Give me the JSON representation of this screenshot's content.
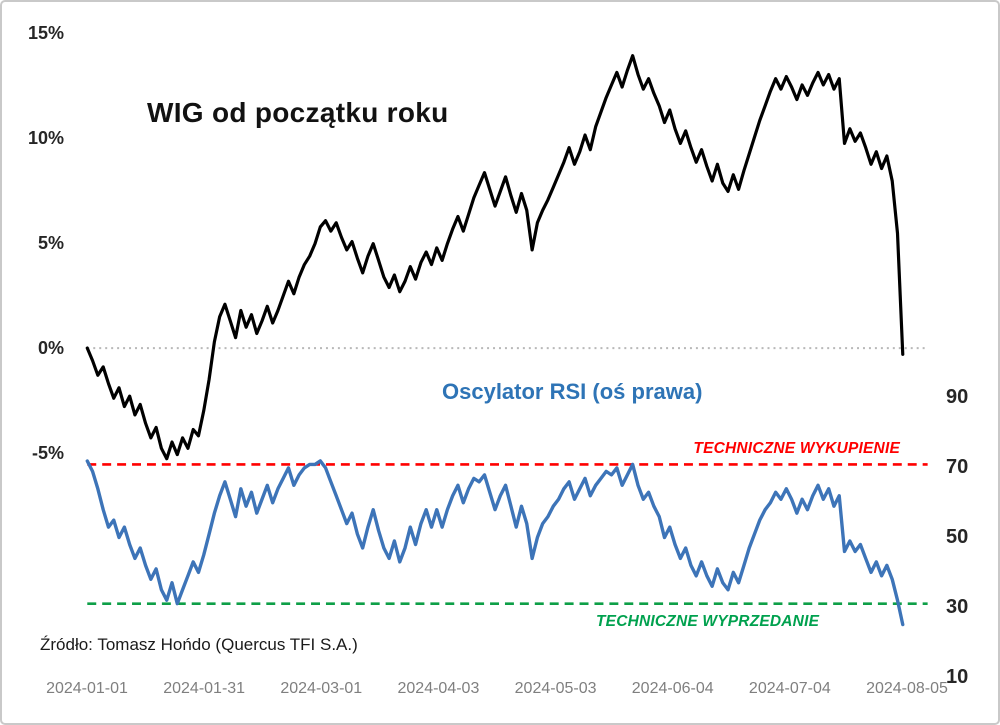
{
  "colors": {
    "background": "#FFFFFF",
    "wig_line": "#000000",
    "rsi_line": "#3D74B8",
    "overbought": "#FF0000",
    "oversold": "#00A14E",
    "oversold_line": "#0E9F47",
    "zero_line": "#B8B8B8",
    "axis_text": "#262626",
    "x_tick_text": "#7F7F7F"
  },
  "chart_data": {
    "type": "line",
    "title": "WIG od początku roku",
    "source": "Źródło: Tomasz Hońdo (Quercus TFI S.A.)",
    "x_tick_labels": [
      "2024-01-01",
      "2024-01-31",
      "2024-03-01",
      "2024-04-03",
      "2024-05-03",
      "2024-06-04",
      "2024-07-04",
      "2024-08-05"
    ],
    "left_axis": {
      "tick_labels": [
        "15%",
        "10%",
        "5%",
        "0%",
        "-5%"
      ],
      "tick_values": [
        15,
        10,
        5,
        0,
        -5
      ],
      "range": [
        -6,
        15.5
      ],
      "grid": "dotted line at 0% only"
    },
    "right_axis": {
      "tick_labels": [
        "90",
        "70",
        "50",
        "30",
        "10"
      ],
      "tick_values": [
        90,
        70,
        50,
        30,
        10
      ],
      "range": [
        10,
        95
      ]
    },
    "annotations": [
      {
        "text": "Oscylator RSI (oś prawa)",
        "color": "#2E74B6"
      },
      {
        "text": "TECHNICZNE WYKUPIENIE",
        "color": "#FF0000"
      },
      {
        "text": "TECHNICZNE WYPRZEDANIE",
        "color": "#00A14E"
      }
    ],
    "reference_lines": [
      {
        "id": "zero-gridline",
        "axis": "left",
        "value": 0,
        "style": "dotted",
        "color": "#B8B8B8"
      },
      {
        "id": "overbought-line",
        "axis": "right",
        "value": 70,
        "style": "dashed",
        "color": "#FF0000"
      },
      {
        "id": "oversold-line",
        "axis": "right",
        "value": 30,
        "style": "dashed",
        "color": "#0E9F47"
      }
    ],
    "series": [
      {
        "id": "wig-line",
        "name": "WIG od początku roku (%)",
        "axis": "left",
        "color": "#000000",
        "values": [
          0.0,
          -0.6,
          -1.3,
          -0.9,
          -1.7,
          -2.4,
          -1.9,
          -2.8,
          -2.3,
          -3.2,
          -2.7,
          -3.6,
          -4.3,
          -3.8,
          -4.8,
          -5.3,
          -4.5,
          -5.1,
          -4.3,
          -4.8,
          -3.9,
          -4.2,
          -3.0,
          -1.5,
          0.3,
          1.5,
          2.1,
          1.3,
          0.5,
          1.8,
          1.0,
          1.6,
          0.7,
          1.3,
          2.0,
          1.2,
          1.8,
          2.5,
          3.2,
          2.6,
          3.4,
          4.0,
          4.4,
          5.0,
          5.8,
          6.1,
          5.6,
          6.0,
          5.3,
          4.7,
          5.1,
          4.3,
          3.6,
          4.4,
          5.0,
          4.2,
          3.4,
          2.9,
          3.5,
          2.7,
          3.2,
          3.9,
          3.3,
          4.1,
          4.6,
          4.0,
          4.8,
          4.2,
          5.0,
          5.7,
          6.3,
          5.6,
          6.4,
          7.2,
          7.8,
          8.4,
          7.6,
          6.8,
          7.5,
          8.2,
          7.3,
          6.5,
          7.4,
          6.6,
          4.7,
          6.0,
          6.6,
          7.1,
          7.7,
          8.3,
          8.9,
          9.6,
          8.8,
          9.4,
          10.2,
          9.5,
          10.6,
          11.3,
          12.0,
          12.6,
          13.2,
          12.5,
          13.3,
          14.0,
          13.1,
          12.4,
          12.9,
          12.2,
          11.6,
          10.8,
          11.4,
          10.5,
          9.8,
          10.4,
          9.6,
          8.9,
          9.5,
          8.7,
          8.0,
          8.8,
          7.9,
          7.5,
          8.3,
          7.6,
          8.5,
          9.3,
          10.1,
          10.9,
          11.6,
          12.3,
          12.9,
          12.4,
          13.0,
          12.5,
          11.9,
          12.6,
          12.1,
          12.7,
          13.2,
          12.6,
          13.1,
          12.4,
          12.9,
          9.8,
          10.5,
          9.9,
          10.3,
          9.6,
          8.8,
          9.4,
          8.6,
          9.2,
          8.0,
          5.5,
          -0.3
        ]
      },
      {
        "id": "rsi-line",
        "name": "Oscylator RSI",
        "axis": "right",
        "color": "#3D74B8",
        "values": [
          71,
          68,
          63,
          57,
          52,
          54,
          49,
          52,
          47,
          43,
          46,
          41,
          37,
          40,
          34,
          31,
          36,
          30,
          34,
          38,
          42,
          39,
          44,
          50,
          56,
          61,
          65,
          60,
          55,
          63,
          58,
          62,
          56,
          60,
          64,
          59,
          63,
          66,
          69,
          64,
          67,
          69,
          70,
          70,
          71,
          69,
          65,
          61,
          57,
          53,
          56,
          50,
          46,
          52,
          57,
          51,
          46,
          43,
          48,
          42,
          46,
          52,
          47,
          53,
          57,
          52,
          57,
          52,
          57,
          61,
          64,
          59,
          63,
          66,
          65,
          67,
          62,
          57,
          61,
          64,
          58,
          52,
          58,
          53,
          43,
          49,
          53,
          55,
          58,
          60,
          63,
          65,
          60,
          63,
          66,
          61,
          64,
          66,
          68,
          67,
          69,
          64,
          67,
          70,
          64,
          60,
          62,
          58,
          55,
          49,
          52,
          47,
          43,
          46,
          41,
          38,
          42,
          38,
          35,
          40,
          36,
          34,
          39,
          36,
          41,
          46,
          50,
          54,
          57,
          59,
          62,
          60,
          63,
          60,
          56,
          60,
          57,
          61,
          64,
          60,
          63,
          58,
          61,
          45,
          48,
          45,
          47,
          43,
          39,
          42,
          38,
          41,
          37,
          31,
          24
        ]
      }
    ]
  }
}
